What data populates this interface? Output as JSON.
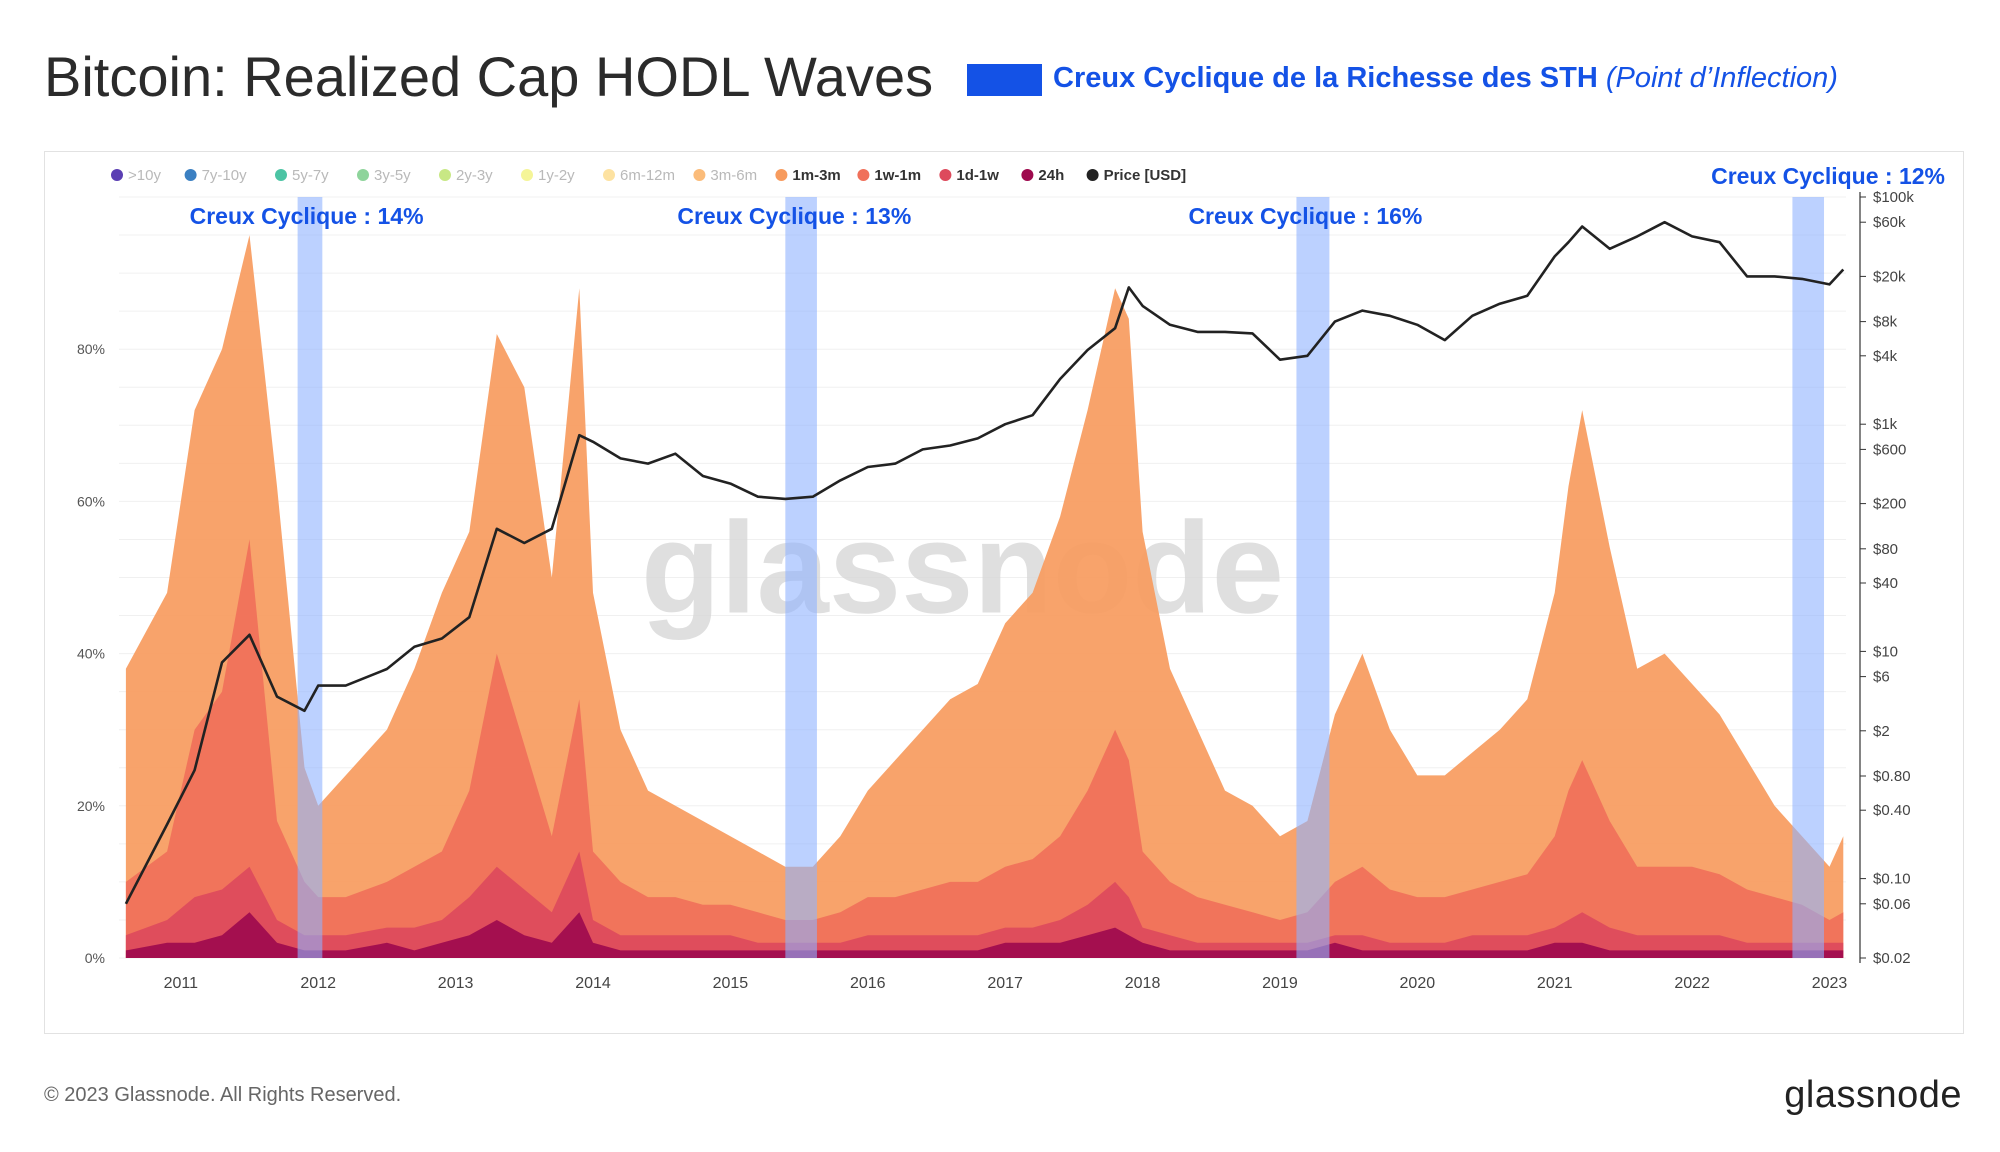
{
  "header": {
    "title": "Bitcoin: Realized Cap HODL Waves",
    "legend_label": "Creux Cyclique de la Richesse des STH",
    "legend_sublabel": "(Point d’Inflection)"
  },
  "footer": {
    "copyright": "© 2023 Glassnode. All Rights Reserved.",
    "logo": "glassnode"
  },
  "colors": {
    "highlight": "#1452e6",
    "band_fill": "#8fb3ff",
    "price_line": "#222222"
  },
  "chart_data": {
    "type": "area",
    "title": "Bitcoin: Realized Cap HODL Waves",
    "watermark": "glassnode",
    "x": [
      2010.6,
      2010.9,
      2011.1,
      2011.3,
      2011.5,
      2011.7,
      2011.9,
      2012.0,
      2012.2,
      2012.5,
      2012.7,
      2012.9,
      2013.1,
      2013.3,
      2013.5,
      2013.7,
      2013.9,
      2014.0,
      2014.2,
      2014.4,
      2014.6,
      2014.8,
      2015.0,
      2015.2,
      2015.4,
      2015.6,
      2015.8,
      2016.0,
      2016.2,
      2016.4,
      2016.6,
      2016.8,
      2017.0,
      2017.2,
      2017.4,
      2017.6,
      2017.8,
      2017.9,
      2018.0,
      2018.2,
      2018.4,
      2018.6,
      2018.8,
      2019.0,
      2019.2,
      2019.4,
      2019.6,
      2019.8,
      2020.0,
      2020.2,
      2020.4,
      2020.6,
      2020.8,
      2021.0,
      2021.1,
      2021.2,
      2021.4,
      2021.6,
      2021.8,
      2022.0,
      2022.2,
      2022.4,
      2022.6,
      2022.8,
      2023.0,
      2023.1
    ],
    "series": [
      {
        "name": "24h",
        "values": [
          1,
          2,
          2,
          3,
          6,
          2,
          1,
          1,
          1,
          2,
          1,
          2,
          3,
          5,
          3,
          2,
          6,
          2,
          1,
          1,
          1,
          1,
          1,
          1,
          1,
          1,
          1,
          1,
          1,
          1,
          1,
          1,
          2,
          2,
          2,
          3,
          4,
          3,
          2,
          1,
          1,
          1,
          1,
          1,
          1,
          2,
          1,
          1,
          1,
          1,
          1,
          1,
          1,
          2,
          2,
          2,
          1,
          1,
          1,
          1,
          1,
          1,
          1,
          1,
          1,
          1
        ]
      },
      {
        "name": "1d-1w",
        "values": [
          3,
          5,
          8,
          9,
          12,
          5,
          3,
          3,
          3,
          4,
          4,
          5,
          8,
          12,
          9,
          6,
          14,
          5,
          3,
          3,
          3,
          3,
          3,
          2,
          2,
          2,
          2,
          3,
          3,
          3,
          3,
          3,
          4,
          4,
          5,
          7,
          10,
          8,
          4,
          3,
          2,
          2,
          2,
          2,
          2,
          3,
          3,
          2,
          2,
          2,
          3,
          3,
          3,
          4,
          5,
          6,
          4,
          3,
          3,
          3,
          3,
          2,
          2,
          2,
          2,
          2
        ]
      },
      {
        "name": "1w-1m",
        "values": [
          10,
          14,
          30,
          35,
          55,
          18,
          10,
          8,
          8,
          10,
          12,
          14,
          22,
          40,
          28,
          16,
          34,
          14,
          10,
          8,
          8,
          7,
          7,
          6,
          5,
          5,
          6,
          8,
          8,
          9,
          10,
          10,
          12,
          13,
          16,
          22,
          30,
          26,
          14,
          10,
          8,
          7,
          6,
          5,
          6,
          10,
          12,
          9,
          8,
          8,
          9,
          10,
          11,
          16,
          22,
          26,
          18,
          12,
          12,
          12,
          11,
          9,
          8,
          7,
          5,
          6
        ]
      },
      {
        "name": "1m-3m",
        "values": [
          38,
          48,
          72,
          80,
          95,
          62,
          25,
          20,
          24,
          30,
          38,
          48,
          56,
          82,
          75,
          50,
          88,
          48,
          30,
          22,
          20,
          18,
          16,
          14,
          12,
          12,
          16,
          22,
          26,
          30,
          34,
          36,
          44,
          48,
          58,
          72,
          88,
          84,
          56,
          38,
          30,
          22,
          20,
          16,
          18,
          32,
          40,
          30,
          24,
          24,
          27,
          30,
          34,
          48,
          62,
          72,
          54,
          38,
          40,
          36,
          32,
          26,
          20,
          16,
          12,
          16
        ]
      }
    ],
    "price_series": {
      "name": "Price [USD]",
      "values": [
        0.06,
        0.3,
        0.9,
        8,
        14,
        4,
        3,
        5,
        5,
        7,
        11,
        13,
        20,
        120,
        90,
        120,
        800,
        700,
        500,
        450,
        550,
        350,
        300,
        230,
        220,
        230,
        320,
        420,
        450,
        600,
        650,
        750,
        1000,
        1200,
        2500,
        4500,
        7000,
        16000,
        11000,
        7500,
        6500,
        6500,
        6300,
        3700,
        4000,
        8000,
        10000,
        9000,
        7500,
        5500,
        9000,
        11500,
        13500,
        30000,
        40000,
        55000,
        35000,
        45000,
        60000,
        45000,
        40000,
        20000,
        20000,
        19000,
        17000,
        23000
      ]
    },
    "legend": [
      ">10y",
      "7y-10y",
      "5y-7y",
      "3y-5y",
      "2y-3y",
      "1y-2y",
      "6m-12m",
      "3m-6m",
      "1m-3m",
      "1w-1m",
      "1d-1w",
      "24h",
      "Price [USD]"
    ],
    "legend_colors": [
      "#5b3fb3",
      "#3b80c2",
      "#4cc4a4",
      "#8ed49b",
      "#c8e885",
      "#f5f598",
      "#fde2a1",
      "#fbbc7a",
      "#f79b5e",
      "#f0705a",
      "#dd4a5c",
      "#9e0a4e",
      "#222222"
    ],
    "legend_faded": [
      true,
      true,
      true,
      true,
      true,
      true,
      true,
      true,
      false,
      false,
      false,
      false,
      false
    ],
    "xlabel": "",
    "ylabel": "",
    "x_ticks": [
      2011,
      2012,
      2013,
      2014,
      2015,
      2016,
      2017,
      2018,
      2019,
      2020,
      2021,
      2022,
      2023
    ],
    "xlim": [
      2010.55,
      2023.12
    ],
    "ylim": [
      0,
      100
    ],
    "y_ticks": [
      0,
      20,
      40,
      60,
      80
    ],
    "y_tick_labels": [
      "0%",
      "20%",
      "40%",
      "60%",
      "80%"
    ],
    "y2_ticks": [
      0.02,
      0.06,
      0.1,
      0.4,
      0.8,
      2,
      6,
      10,
      40,
      80,
      200,
      600,
      1000,
      4000,
      8000,
      20000,
      60000,
      100000
    ],
    "y2_tick_labels": [
      "$0.02",
      "$0.06",
      "$0.10",
      "$0.40",
      "$0.80",
      "$2",
      "$6",
      "$10",
      "$40",
      "$80",
      "$200",
      "$600",
      "$1k",
      "$4k",
      "$8k",
      "$20k",
      "$60k",
      "$100k"
    ],
    "y2_range": [
      0.02,
      100000
    ],
    "bands": [
      {
        "start": 2011.85,
        "end": 2012.03,
        "label": "Creux Cyclique : 14%"
      },
      {
        "start": 2015.4,
        "end": 2015.63,
        "label": "Creux Cyclique : 13%"
      },
      {
        "start": 2019.12,
        "end": 2019.36,
        "label": "Creux Cyclique : 16%"
      },
      {
        "start": 2022.73,
        "end": 2022.96,
        "label": "Creux Cyclique : 12%"
      }
    ]
  }
}
